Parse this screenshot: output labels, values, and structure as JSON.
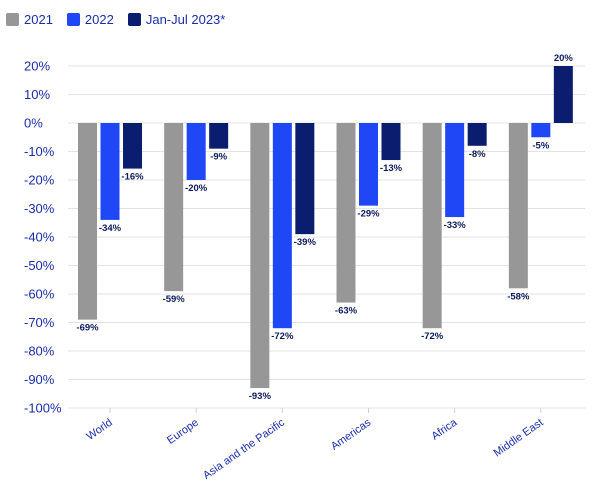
{
  "chart_data": {
    "type": "bar",
    "categories": [
      "World",
      "Europe",
      "Asia and the Pacific",
      "Americas",
      "Africa",
      "Middle East"
    ],
    "series": [
      {
        "name": "2021",
        "color": "#979797",
        "values": [
          -69,
          -59,
          -93,
          -63,
          -72,
          -58
        ]
      },
      {
        "name": "2022",
        "color": "#1f47f5",
        "values": [
          -34,
          -20,
          -72,
          -29,
          -33,
          -5
        ]
      },
      {
        "name": "Jan-Jul 2023*",
        "color": "#0b1d6e",
        "values": [
          -16,
          -9,
          -39,
          -13,
          -8,
          20
        ]
      }
    ],
    "data_labels": [
      [
        "-69%",
        "-59%",
        "-93%",
        "-63%",
        "-72%",
        "-58%"
      ],
      [
        "-34%",
        "-20%",
        "-72%",
        "-29%",
        "-33%",
        "-5%"
      ],
      [
        "-16%",
        "-9%",
        "-39%",
        "-13%",
        "-8%",
        "20%"
      ]
    ],
    "y_ticks": [
      "20%",
      "10%",
      "0%",
      "-10%",
      "-20%",
      "-30%",
      "-40%",
      "-50%",
      "-60%",
      "-70%",
      "-80%",
      "-90%",
      "-100%"
    ],
    "ylim": [
      -100,
      20
    ],
    "grid": true,
    "legend_position": "top-left",
    "title": "",
    "xlabel": "",
    "ylabel": ""
  }
}
